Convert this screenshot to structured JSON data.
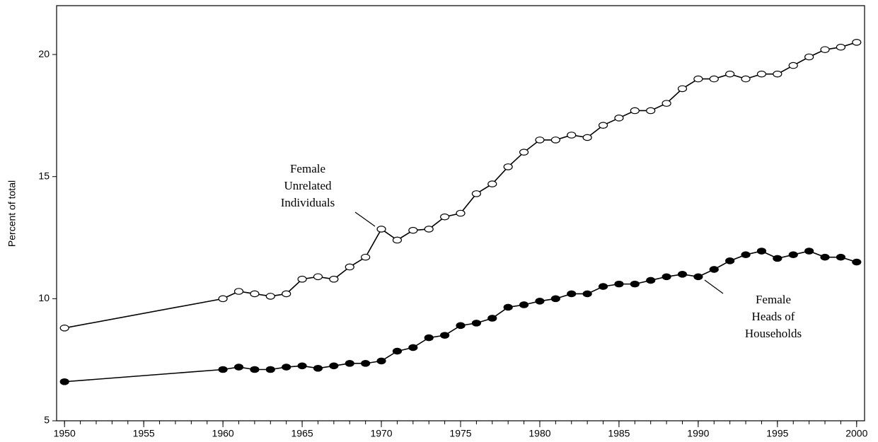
{
  "chart_data": {
    "type": "line",
    "ylabel": "Percent of total",
    "x": [
      1950,
      1960,
      1961,
      1962,
      1963,
      1964,
      1965,
      1966,
      1967,
      1968,
      1969,
      1970,
      1971,
      1972,
      1973,
      1974,
      1975,
      1976,
      1977,
      1978,
      1979,
      1980,
      1981,
      1982,
      1983,
      1984,
      1985,
      1986,
      1987,
      1988,
      1989,
      1990,
      1991,
      1992,
      1993,
      1994,
      1995,
      1996,
      1997,
      1998,
      1999,
      2000
    ],
    "series": [
      {
        "name": [
          "Female",
          "Unrelated",
          "Individuals"
        ],
        "color": "#000000",
        "marker": "open",
        "values": [
          8.8,
          10.0,
          10.3,
          10.2,
          10.1,
          10.2,
          10.8,
          10.9,
          10.8,
          11.3,
          11.7,
          12.85,
          12.4,
          12.8,
          12.85,
          13.35,
          13.5,
          14.3,
          14.7,
          15.4,
          16.0,
          16.5,
          16.5,
          16.7,
          16.6,
          17.1,
          17.4,
          17.7,
          17.7,
          18.0,
          18.6,
          19.0,
          19.0,
          19.2,
          19.0,
          19.2,
          19.2,
          19.55,
          19.9,
          20.2,
          20.3,
          20.5
        ]
      },
      {
        "name": [
          "Female",
          "Heads of",
          "Households"
        ],
        "color": "#000000",
        "marker": "filled",
        "values": [
          6.6,
          7.1,
          7.2,
          7.1,
          7.1,
          7.2,
          7.25,
          7.15,
          7.25,
          7.35,
          7.35,
          7.45,
          7.85,
          8.0,
          8.4,
          8.5,
          8.9,
          9.0,
          9.2,
          9.65,
          9.75,
          9.9,
          10.0,
          10.2,
          10.2,
          10.5,
          10.6,
          10.6,
          10.75,
          10.9,
          11.0,
          10.9,
          11.2,
          11.55,
          11.8,
          11.95,
          11.65,
          11.8,
          11.95,
          11.7,
          11.7,
          11.5
        ]
      }
    ],
    "xlim": [
      1949.5,
      2000.5
    ],
    "xticks": [
      1950,
      1955,
      1960,
      1965,
      1970,
      1975,
      1980,
      1985,
      1990,
      1995,
      2000
    ],
    "xminorticks": [
      1950,
      1951,
      1952,
      1953,
      1954,
      1955,
      1956,
      1957,
      1958,
      1959,
      1960,
      1961,
      1962,
      1963,
      1964,
      1965,
      1966,
      1967,
      1968,
      1969,
      1970,
      1971,
      1972,
      1973,
      1974,
      1975,
      1976,
      1977,
      1978,
      1979,
      1980,
      1981,
      1982,
      1983,
      1984,
      1985,
      1986,
      1987,
      1988,
      1989,
      1990,
      1991,
      1992,
      1993,
      1994,
      1995,
      1996,
      1997,
      1998,
      1999,
      2000
    ],
    "ylim": [
      5,
      22
    ],
    "yticks": [
      5,
      10,
      15,
      20
    ],
    "grid": false
  }
}
